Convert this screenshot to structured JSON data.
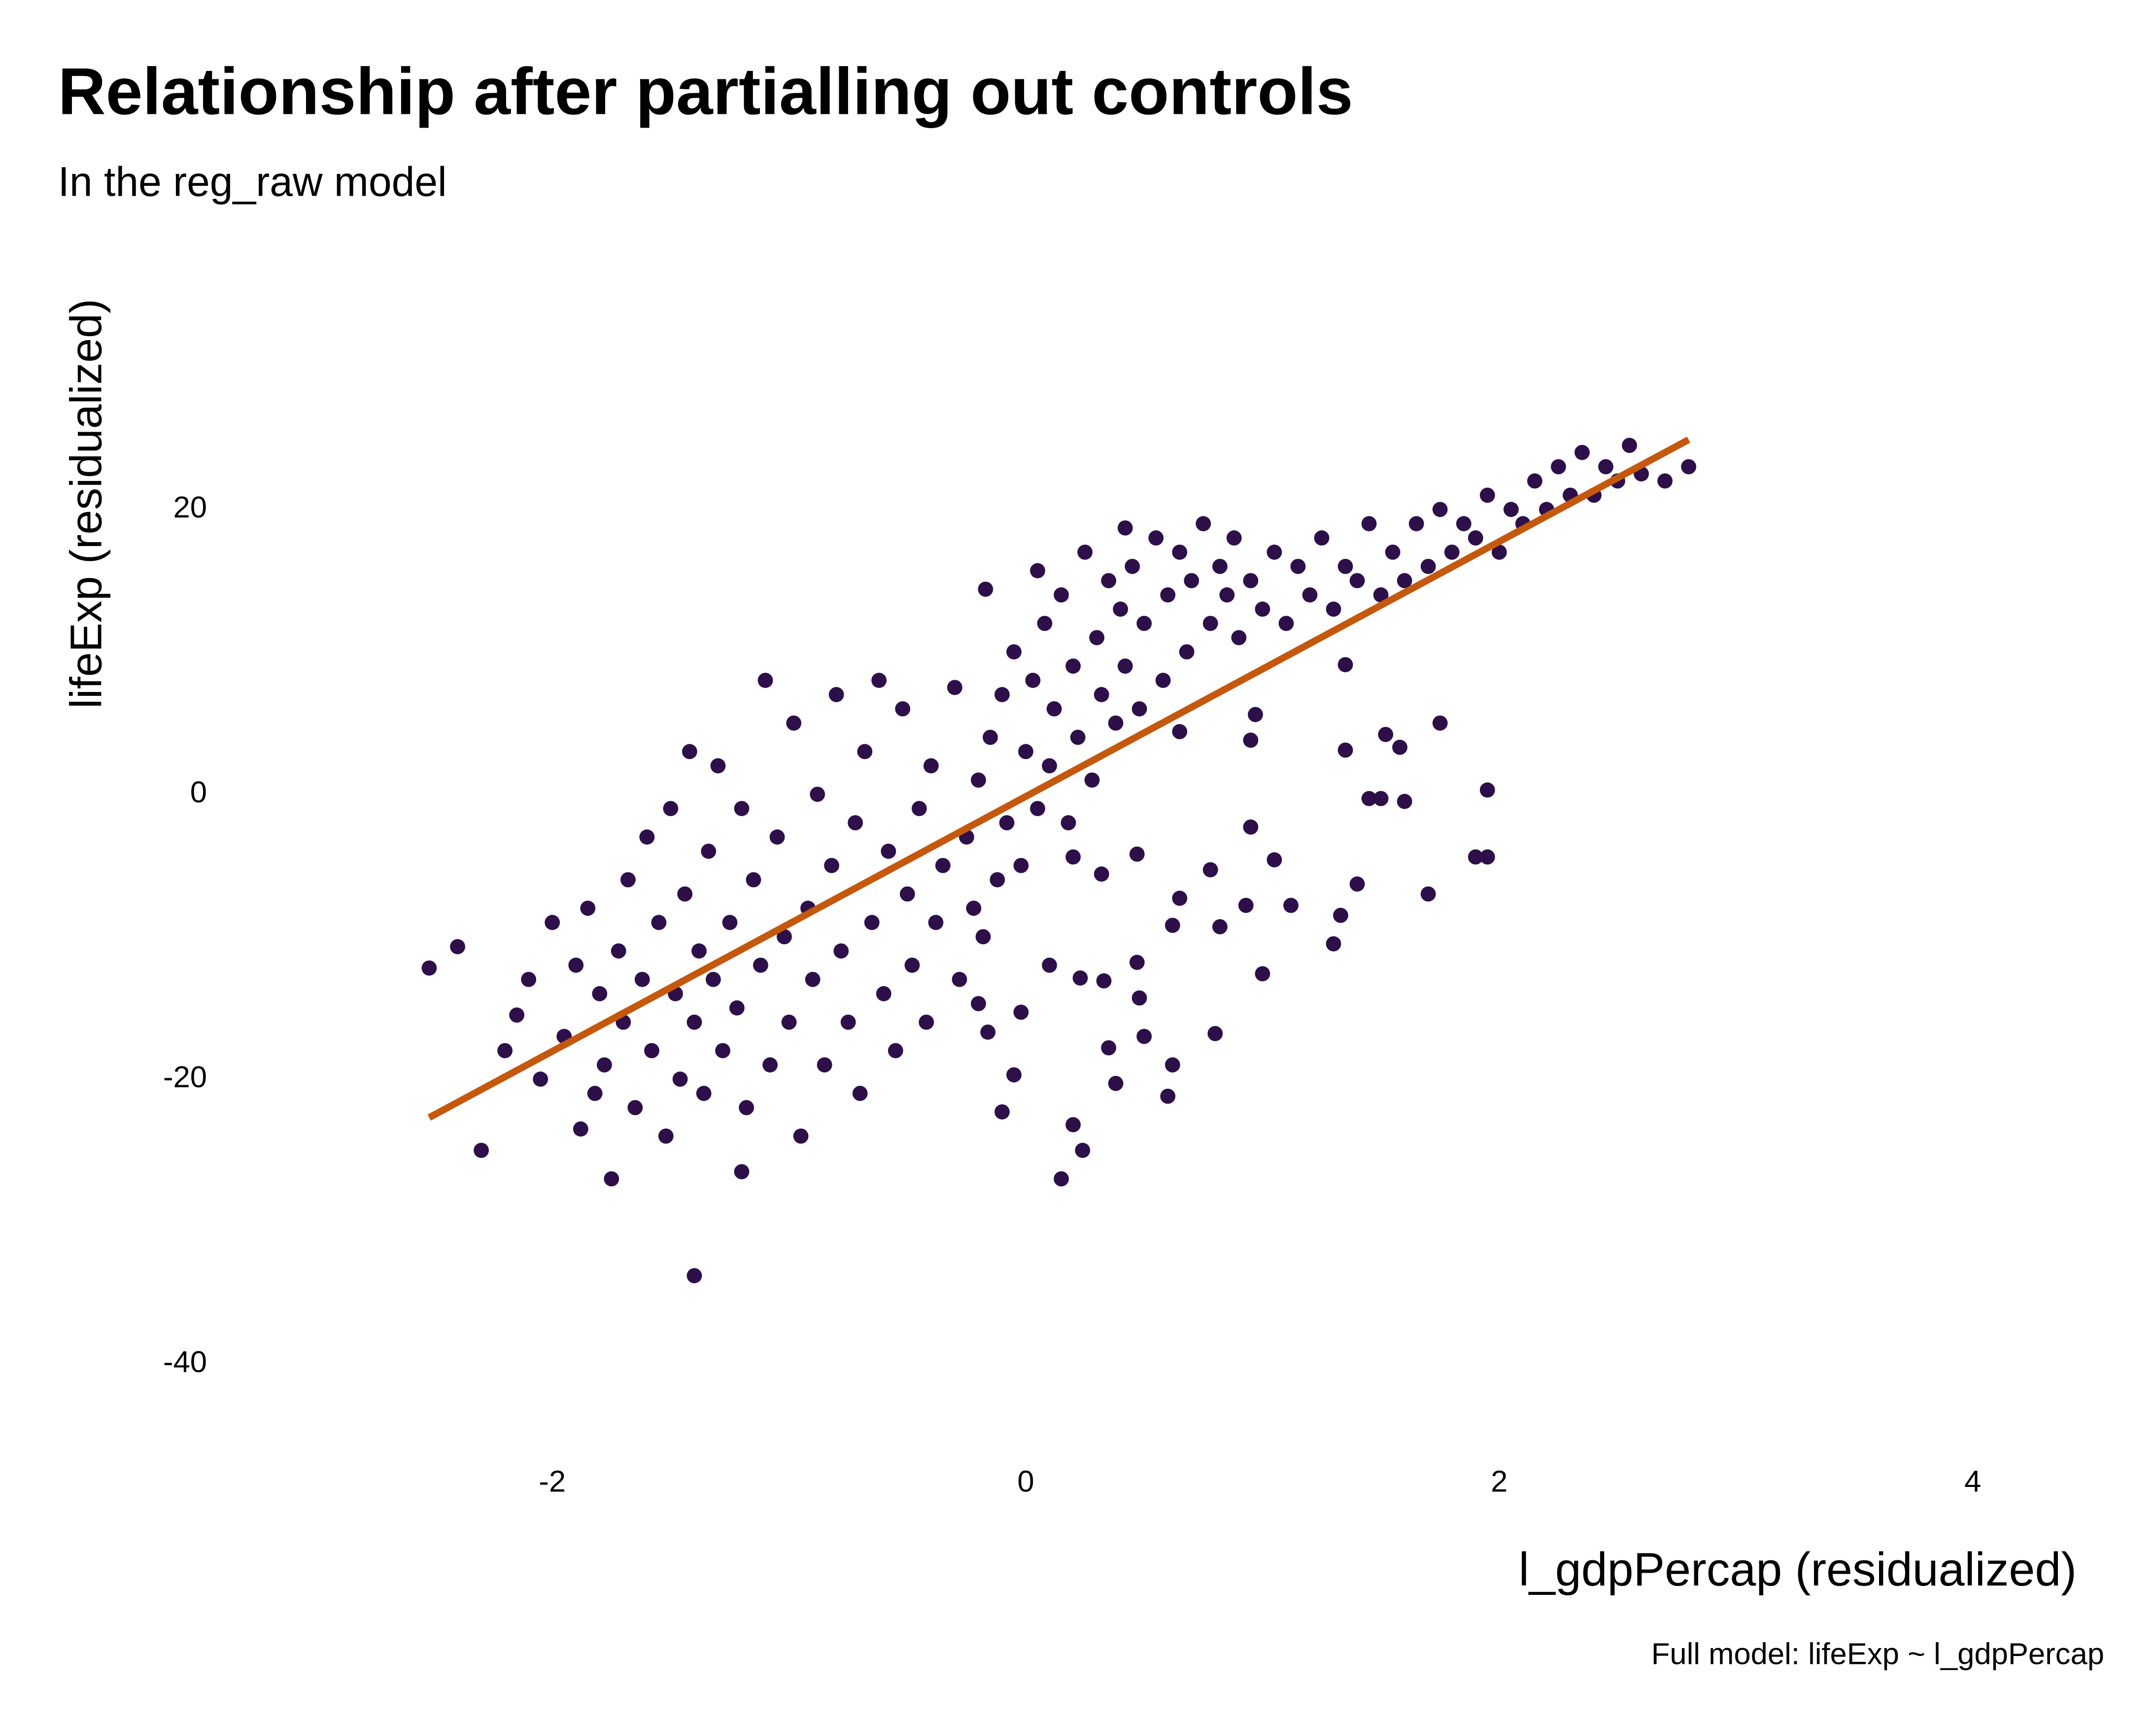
{
  "chart_data": {
    "type": "scatter",
    "title": "Relationship after partialling out controls",
    "subtitle": "In the reg_raw model",
    "x_label": "l_gdpPercap (residualized)",
    "y_label": "lifeExp (residualized)",
    "caption": "Full model: lifeExp ~ l_gdpPercap",
    "xlim": [
      -2.8,
      4.2
    ],
    "xticks": [
      -2,
      0,
      2,
      4
    ],
    "ylim": [
      -45,
      33
    ],
    "yticks": [
      -40,
      -20,
      0,
      20
    ],
    "grid": false,
    "color": "#2d0f4a",
    "fit": {
      "color": "#c4580d",
      "x": [
        -2.52,
        2.8
      ],
      "y": [
        -22.7,
        24.9
      ]
    },
    "x": [
      -2.52,
      -2.4,
      -2.3,
      -1.4,
      -1.2,
      0.15,
      0.24,
      0.2,
      -0.1,
      0.38,
      0.35,
      0.5,
      0.62,
      0.6,
      0.8,
      1.0,
      1.3,
      1.33,
      1.4,
      1.7,
      1.45,
      1.5,
      1.6,
      1.95,
      1.9,
      1.95,
      1.75,
      1.58,
      1.52,
      1.35,
      1.35,
      1.05,
      0.95,
      1.12,
      0.78,
      0.93,
      0.62,
      0.82,
      0.65,
      0.47,
      0.32,
      0.2,
      0.1,
      0.23,
      0.33,
      0.47,
      0.48,
      -0.02,
      -0.05,
      -0.16,
      -0.2,
      0.95,
      0.97,
      0.65,
      0.42,
      -0.17,
      0.05,
      -2.2,
      -2.15,
      -2.1,
      -2.05,
      -2.0,
      -1.95,
      -1.9,
      -1.88,
      -1.85,
      -1.82,
      -1.8,
      -1.78,
      -1.75,
      -1.72,
      -1.7,
      -1.68,
      -1.65,
      -1.62,
      -1.6,
      -1.58,
      -1.55,
      -1.52,
      -1.5,
      -1.48,
      -1.46,
      -1.44,
      -1.42,
      -1.4,
      -1.38,
      -1.36,
      -1.34,
      -1.32,
      -1.3,
      -1.28,
      -1.25,
      -1.22,
      -1.2,
      -1.18,
      -1.15,
      -1.12,
      -1.1,
      -1.08,
      -1.05,
      -1.02,
      -1.0,
      -0.98,
      -0.95,
      -0.92,
      -0.9,
      -0.88,
      -0.85,
      -0.82,
      -0.8,
      -0.78,
      -0.75,
      -0.72,
      -0.7,
      -0.68,
      -0.65,
      -0.62,
      -0.6,
      -0.58,
      -0.55,
      -0.52,
      -0.5,
      -0.48,
      -0.45,
      -0.42,
      -0.4,
      -0.38,
      -0.35,
      -0.3,
      -0.28,
      -0.25,
      -0.22,
      -0.2,
      -0.18,
      -0.15,
      -0.12,
      -0.1,
      -0.08,
      -0.05,
      -0.02,
      0.0,
      0.03,
      0.05,
      0.08,
      0.1,
      0.12,
      0.15,
      0.18,
      0.2,
      0.22,
      0.25,
      0.28,
      0.3,
      0.32,
      0.35,
      0.38,
      0.4,
      0.42,
      0.45,
      0.48,
      0.5,
      0.55,
      0.58,
      0.6,
      0.65,
      0.68,
      0.7,
      0.75,
      0.78,
      0.82,
      0.85,
      0.88,
      0.9,
      0.95,
      1.0,
      1.05,
      1.1,
      1.15,
      1.2,
      1.25,
      1.3,
      1.35,
      1.4,
      1.45,
      1.5,
      1.55,
      1.6,
      1.65,
      1.7,
      1.75,
      1.8,
      1.85,
      1.9,
      1.95,
      2.0,
      2.05,
      2.1,
      2.15,
      2.2,
      2.25,
      2.3,
      2.35,
      2.4,
      2.45,
      2.5,
      2.55,
      2.6,
      2.7,
      2.8
    ],
    "y": [
      -12.2,
      -10.7,
      -25,
      -33.8,
      -26.5,
      -27,
      -25,
      -23.2,
      -22.3,
      -20.3,
      -17.8,
      -17,
      -19,
      -21.2,
      -16.8,
      -12.6,
      -10.5,
      -8.5,
      -6.3,
      -7,
      -0.3,
      -0.3,
      -0.5,
      0.3,
      -4.4,
      -4.4,
      5,
      3.3,
      4.2,
      3.1,
      9.1,
      -4.6,
      -2.3,
      -7.8,
      -5.3,
      -7.8,
      -9.2,
      -9.3,
      -7.3,
      -4.2,
      -5.6,
      -4.4,
      -12,
      -12.9,
      -13.1,
      -11.8,
      -14.3,
      -15.3,
      -19.7,
      -16.7,
      -14.7,
      3.8,
      5.6,
      4.4,
      18.7,
      14.4,
      15.7,
      -18,
      -15.5,
      -13,
      -20,
      -9,
      -17,
      -12,
      -23.5,
      -8,
      -21,
      -14,
      -19,
      -27,
      -11,
      -16,
      -6,
      -22,
      -13,
      -3,
      -18,
      -9,
      -24,
      -1,
      -14,
      -20,
      -7,
      3,
      -16,
      -11,
      -21,
      -4,
      -13,
      2,
      -18,
      -9,
      -15,
      -1,
      -22,
      -6,
      -12,
      8,
      -19,
      -3,
      -10,
      -16,
      5,
      -24,
      -8,
      -13,
      0,
      -19,
      -5,
      7,
      -11,
      -16,
      -2,
      -21,
      3,
      -9,
      8,
      -14,
      -4,
      -18,
      6,
      -7,
      -12,
      -1,
      -16,
      2,
      -9,
      -5,
      7.5,
      -13,
      -3,
      -8,
      1,
      -10,
      4,
      -6,
      7,
      -2,
      10,
      -5,
      3,
      8,
      -1,
      12,
      2,
      6,
      14,
      -2,
      9,
      4,
      17,
      1,
      11,
      7,
      15,
      5,
      13,
      9,
      16,
      6,
      12,
      18,
      8,
      14,
      17,
      10,
      15,
      19,
      12,
      16,
      14,
      18,
      11,
      15,
      13,
      17,
      12,
      16,
      14,
      18,
      13,
      16,
      15,
      19,
      14,
      17,
      15,
      19,
      16,
      20,
      17,
      19,
      18,
      21,
      17,
      20,
      19,
      22,
      20,
      23,
      21,
      24,
      21,
      23,
      22,
      24.5,
      22.5,
      22,
      23
    ]
  }
}
